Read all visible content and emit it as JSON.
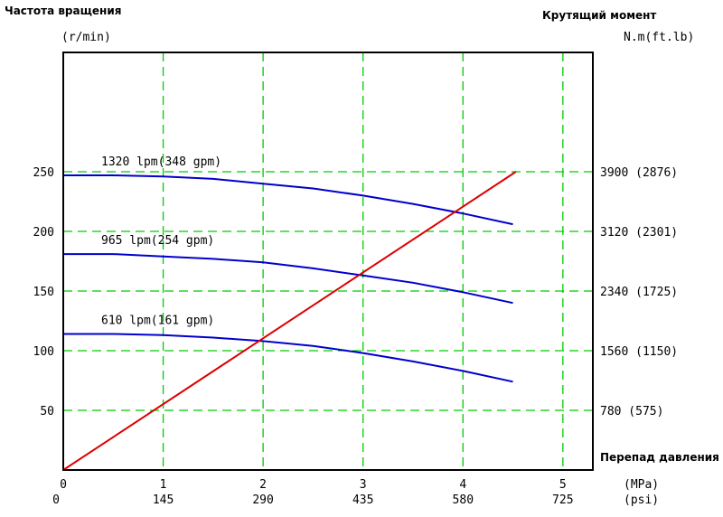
{
  "chart_data": {
    "type": "line",
    "left_axis": {
      "title": "Частота вращения",
      "unit": "(r/min)",
      "range": [
        0,
        350
      ],
      "ticks": [
        {
          "value": 50,
          "label": "50"
        },
        {
          "value": 100,
          "label": "100"
        },
        {
          "value": 150,
          "label": "150"
        },
        {
          "value": 200,
          "label": "200"
        },
        {
          "value": 250,
          "label": "250"
        }
      ]
    },
    "right_axis": {
      "title": "Крутящий момент",
      "unit": "N.m(ft.lb)",
      "range": [
        0,
        5460
      ],
      "ticks": [
        {
          "value": 780,
          "label": "780 (575)"
        },
        {
          "value": 1560,
          "label": "1560 (1150)"
        },
        {
          "value": 2340,
          "label": "2340 (1725)"
        },
        {
          "value": 3120,
          "label": "3120 (2301)"
        },
        {
          "value": 3900,
          "label": "3900 (2876)"
        }
      ]
    },
    "x_axis": {
      "title": "Перепад давления",
      "range": [
        0,
        5.3
      ],
      "unit_mpa": "(MPa)",
      "unit_psi": "(psi)",
      "ticks_mpa": [
        {
          "value": 0,
          "label": "0"
        },
        {
          "value": 1,
          "label": "1"
        },
        {
          "value": 2,
          "label": "2"
        },
        {
          "value": 3,
          "label": "3"
        },
        {
          "value": 4,
          "label": "4"
        },
        {
          "value": 5,
          "label": "5"
        }
      ],
      "ticks_psi": [
        {
          "value": 0,
          "label": "0"
        },
        {
          "value": 1,
          "label": "145"
        },
        {
          "value": 2,
          "label": "290"
        },
        {
          "value": 3,
          "label": "435"
        },
        {
          "value": 4,
          "label": "580"
        },
        {
          "value": 5,
          "label": "725"
        }
      ]
    },
    "grid": true,
    "series": [
      {
        "name": "1320 lpm(348 gpm)",
        "axis": "left",
        "color": "#0000cc",
        "points": [
          [
            0,
            247
          ],
          [
            0.5,
            247
          ],
          [
            1,
            246
          ],
          [
            1.5,
            244
          ],
          [
            2,
            240
          ],
          [
            2.5,
            236
          ],
          [
            3,
            230
          ],
          [
            3.5,
            223
          ],
          [
            4,
            215
          ],
          [
            4.5,
            206
          ]
        ]
      },
      {
        "name": "965 lpm(254 gpm)",
        "axis": "left",
        "color": "#0000cc",
        "points": [
          [
            0,
            181
          ],
          [
            0.5,
            181
          ],
          [
            1,
            179
          ],
          [
            1.5,
            177
          ],
          [
            2,
            174
          ],
          [
            2.5,
            169
          ],
          [
            3,
            163
          ],
          [
            3.5,
            157
          ],
          [
            4,
            149
          ],
          [
            4.5,
            140
          ]
        ]
      },
      {
        "name": "610 lpm(161 gpm)",
        "axis": "left",
        "color": "#0000cc",
        "points": [
          [
            0,
            114
          ],
          [
            0.5,
            114
          ],
          [
            1,
            113
          ],
          [
            1.5,
            111
          ],
          [
            2,
            108
          ],
          [
            2.5,
            104
          ],
          [
            3,
            98
          ],
          [
            3.5,
            91
          ],
          [
            4,
            83
          ],
          [
            4.5,
            74
          ]
        ]
      },
      {
        "name": "",
        "axis": "right",
        "color": "#dd0000",
        "points": [
          [
            0,
            0
          ],
          [
            4.53,
            3900
          ]
        ]
      }
    ],
    "colors": {
      "grid": "#00cc00",
      "frame": "#000000"
    }
  }
}
